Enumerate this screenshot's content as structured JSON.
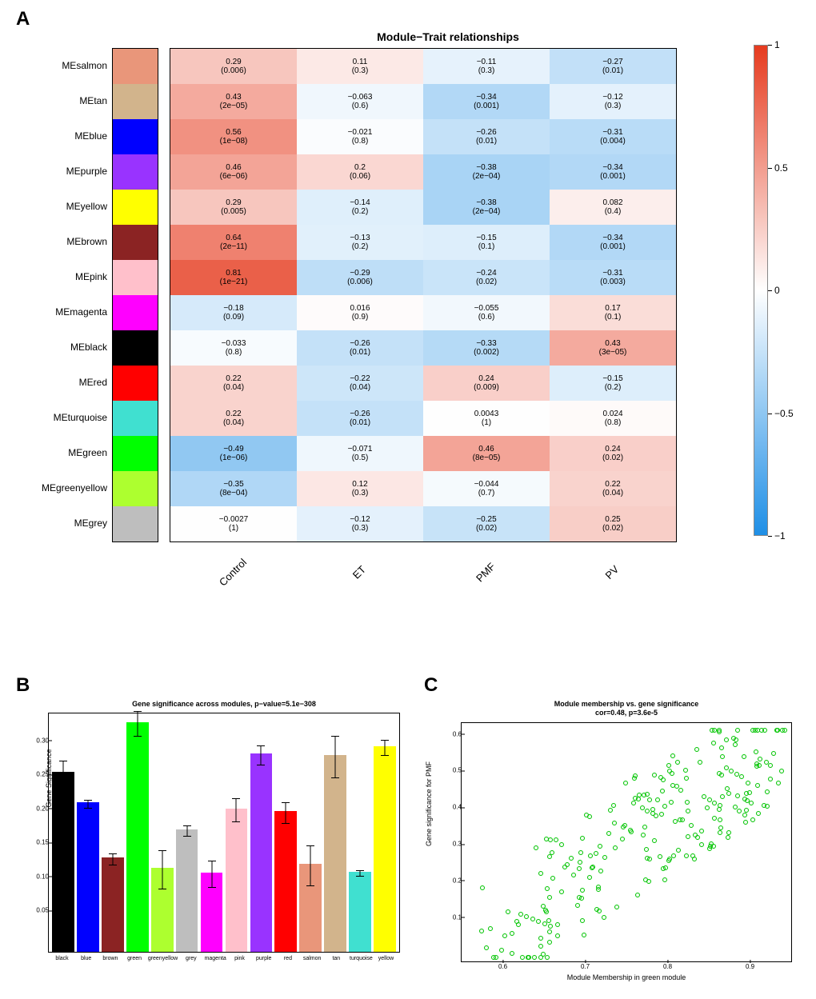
{
  "panelA": {
    "label": "A",
    "title": "Module−Trait relationships",
    "columns": [
      "Control",
      "ET",
      "PMF",
      "PV"
    ],
    "rows": [
      {
        "name": "MEsalmon",
        "color": "#e9967a"
      },
      {
        "name": "MEtan",
        "color": "#d2b48c"
      },
      {
        "name": "MEblue",
        "color": "#0000ff"
      },
      {
        "name": "MEpurple",
        "color": "#9933ff"
      },
      {
        "name": "MEyellow",
        "color": "#ffff00"
      },
      {
        "name": "MEbrown",
        "color": "#8b2323"
      },
      {
        "name": "MEpink",
        "color": "#ffc0cb"
      },
      {
        "name": "MEmagenta",
        "color": "#ff00ff"
      },
      {
        "name": "MEblack",
        "color": "#000000"
      },
      {
        "name": "MEred",
        "color": "#ff0000"
      },
      {
        "name": "MEturquoise",
        "color": "#40e0d0"
      },
      {
        "name": "MEgreen",
        "color": "#00ff00"
      },
      {
        "name": "MEgreenyellow",
        "color": "#adff2f"
      },
      {
        "name": "MEgrey",
        "color": "#bebebe"
      }
    ],
    "cells": [
      [
        {
          "v": "0.29",
          "p": "(0.006)",
          "c": 0.29
        },
        {
          "v": "0.11",
          "p": "(0.3)",
          "c": 0.11
        },
        {
          "v": "−0.11",
          "p": "(0.3)",
          "c": -0.11
        },
        {
          "v": "−0.27",
          "p": "(0.01)",
          "c": -0.27
        }
      ],
      [
        {
          "v": "0.43",
          "p": "(2e−05)",
          "c": 0.43
        },
        {
          "v": "−0.063",
          "p": "(0.6)",
          "c": -0.063
        },
        {
          "v": "−0.34",
          "p": "(0.001)",
          "c": -0.34
        },
        {
          "v": "−0.12",
          "p": "(0.3)",
          "c": -0.12
        }
      ],
      [
        {
          "v": "0.56",
          "p": "(1e−08)",
          "c": 0.56
        },
        {
          "v": "−0.021",
          "p": "(0.8)",
          "c": -0.021
        },
        {
          "v": "−0.26",
          "p": "(0.01)",
          "c": -0.26
        },
        {
          "v": "−0.31",
          "p": "(0.004)",
          "c": -0.31
        }
      ],
      [
        {
          "v": "0.46",
          "p": "(6e−06)",
          "c": 0.46
        },
        {
          "v": "0.2",
          "p": "(0.06)",
          "c": 0.2
        },
        {
          "v": "−0.38",
          "p": "(2e−04)",
          "c": -0.38
        },
        {
          "v": "−0.34",
          "p": "(0.001)",
          "c": -0.34
        }
      ],
      [
        {
          "v": "0.29",
          "p": "(0.005)",
          "c": 0.29
        },
        {
          "v": "−0.14",
          "p": "(0.2)",
          "c": -0.14
        },
        {
          "v": "−0.38",
          "p": "(2e−04)",
          "c": -0.38
        },
        {
          "v": "0.082",
          "p": "(0.4)",
          "c": 0.082
        }
      ],
      [
        {
          "v": "0.64",
          "p": "(2e−11)",
          "c": 0.64
        },
        {
          "v": "−0.13",
          "p": "(0.2)",
          "c": -0.13
        },
        {
          "v": "−0.15",
          "p": "(0.1)",
          "c": -0.15
        },
        {
          "v": "−0.34",
          "p": "(0.001)",
          "c": -0.34
        }
      ],
      [
        {
          "v": "0.81",
          "p": "(1e−21)",
          "c": 0.81
        },
        {
          "v": "−0.29",
          "p": "(0.006)",
          "c": -0.29
        },
        {
          "v": "−0.24",
          "p": "(0.02)",
          "c": -0.24
        },
        {
          "v": "−0.31",
          "p": "(0.003)",
          "c": -0.31
        }
      ],
      [
        {
          "v": "−0.18",
          "p": "(0.09)",
          "c": -0.18
        },
        {
          "v": "0.016",
          "p": "(0.9)",
          "c": 0.016
        },
        {
          "v": "−0.055",
          "p": "(0.6)",
          "c": -0.055
        },
        {
          "v": "0.17",
          "p": "(0.1)",
          "c": 0.17
        }
      ],
      [
        {
          "v": "−0.033",
          "p": "(0.8)",
          "c": -0.033
        },
        {
          "v": "−0.26",
          "p": "(0.01)",
          "c": -0.26
        },
        {
          "v": "−0.33",
          "p": "(0.002)",
          "c": -0.33
        },
        {
          "v": "0.43",
          "p": "(3e−05)",
          "c": 0.43
        }
      ],
      [
        {
          "v": "0.22",
          "p": "(0.04)",
          "c": 0.22
        },
        {
          "v": "−0.22",
          "p": "(0.04)",
          "c": -0.22
        },
        {
          "v": "0.24",
          "p": "(0.009)",
          "c": 0.24
        },
        {
          "v": "−0.15",
          "p": "(0.2)",
          "c": -0.15
        }
      ],
      [
        {
          "v": "0.22",
          "p": "(0.04)",
          "c": 0.22
        },
        {
          "v": "−0.26",
          "p": "(0.01)",
          "c": -0.26
        },
        {
          "v": "0.0043",
          "p": "(1)",
          "c": 0.0043
        },
        {
          "v": "0.024",
          "p": "(0.8)",
          "c": 0.024
        }
      ],
      [
        {
          "v": "−0.49",
          "p": "(1e−06)",
          "c": -0.49
        },
        {
          "v": "−0.071",
          "p": "(0.5)",
          "c": -0.071
        },
        {
          "v": "0.46",
          "p": "(8e−05)",
          "c": 0.46
        },
        {
          "v": "0.24",
          "p": "(0.02)",
          "c": 0.24
        }
      ],
      [
        {
          "v": "−0.35",
          "p": "(8e−04)",
          "c": -0.35
        },
        {
          "v": "0.12",
          "p": "(0.3)",
          "c": 0.12
        },
        {
          "v": "−0.044",
          "p": "(0.7)",
          "c": -0.044
        },
        {
          "v": "0.22",
          "p": "(0.04)",
          "c": 0.22
        }
      ],
      [
        {
          "v": "−0.0027",
          "p": "(1)",
          "c": -0.0027
        },
        {
          "v": "−0.12",
          "p": "(0.3)",
          "c": -0.12
        },
        {
          "v": "−0.25",
          "p": "(0.02)",
          "c": -0.25
        },
        {
          "v": "0.25",
          "p": "(0.02)",
          "c": 0.25
        }
      ]
    ],
    "colorbar": {
      "ticks": [
        {
          "v": "1",
          "pos": 0
        },
        {
          "v": "0.5",
          "pos": 0.25
        },
        {
          "v": "0",
          "pos": 0.5
        },
        {
          "v": "−0.5",
          "pos": 0.75
        },
        {
          "v": "−1",
          "pos": 1
        }
      ]
    }
  },
  "panelB": {
    "label": "B",
    "title": "Gene significance across modules, p−value=5.1e−308",
    "ylabel": "Gene Significance",
    "ymax": 0.35,
    "yticks": [
      "0.05",
      "0.10",
      "0.15",
      "0.20",
      "0.25",
      "0.30"
    ],
    "bars": [
      {
        "name": "black",
        "color": "#000000",
        "v": 0.263,
        "e": 0.018
      },
      {
        "name": "blue",
        "color": "#0000ff",
        "v": 0.218,
        "e": 0.006
      },
      {
        "name": "brown",
        "color": "#8b2323",
        "v": 0.138,
        "e": 0.008
      },
      {
        "name": "green",
        "color": "#00ff00",
        "v": 0.335,
        "e": 0.018
      },
      {
        "name": "greenyellow",
        "color": "#adff2f",
        "v": 0.122,
        "e": 0.028
      },
      {
        "name": "grey",
        "color": "#bebebe",
        "v": 0.179,
        "e": 0.008
      },
      {
        "name": "magenta",
        "color": "#ff00ff",
        "v": 0.116,
        "e": 0.019
      },
      {
        "name": "pink",
        "color": "#ffc0cb",
        "v": 0.209,
        "e": 0.017
      },
      {
        "name": "purple",
        "color": "#9933ff",
        "v": 0.289,
        "e": 0.014
      },
      {
        "name": "red",
        "color": "#ff0000",
        "v": 0.205,
        "e": 0.015
      },
      {
        "name": "salmon",
        "color": "#e9967a",
        "v": 0.128,
        "e": 0.029
      },
      {
        "name": "tan",
        "color": "#d2b48c",
        "v": 0.287,
        "e": 0.03
      },
      {
        "name": "turquoise",
        "color": "#40e0d0",
        "v": 0.117,
        "e": 0.004
      },
      {
        "name": "yellow",
        "color": "#ffff00",
        "v": 0.3,
        "e": 0.011
      }
    ]
  },
  "panelC": {
    "label": "C",
    "title1": "Module membership vs. gene significance",
    "title2": "cor=0.48, p=3.6e-5",
    "xlabel": "Module Membership in green module",
    "ylabel": "Gene significance for PMF",
    "xlim": [
      0.55,
      0.95
    ],
    "ylim": [
      0,
      0.65
    ],
    "xticks": [
      "0.6",
      "0.7",
      "0.8",
      "0.9"
    ],
    "yticks": [
      "0.1",
      "0.2",
      "0.3",
      "0.4",
      "0.5",
      "0.6"
    ],
    "point_color": "#00c400",
    "n_points": 230,
    "seed": 7
  }
}
